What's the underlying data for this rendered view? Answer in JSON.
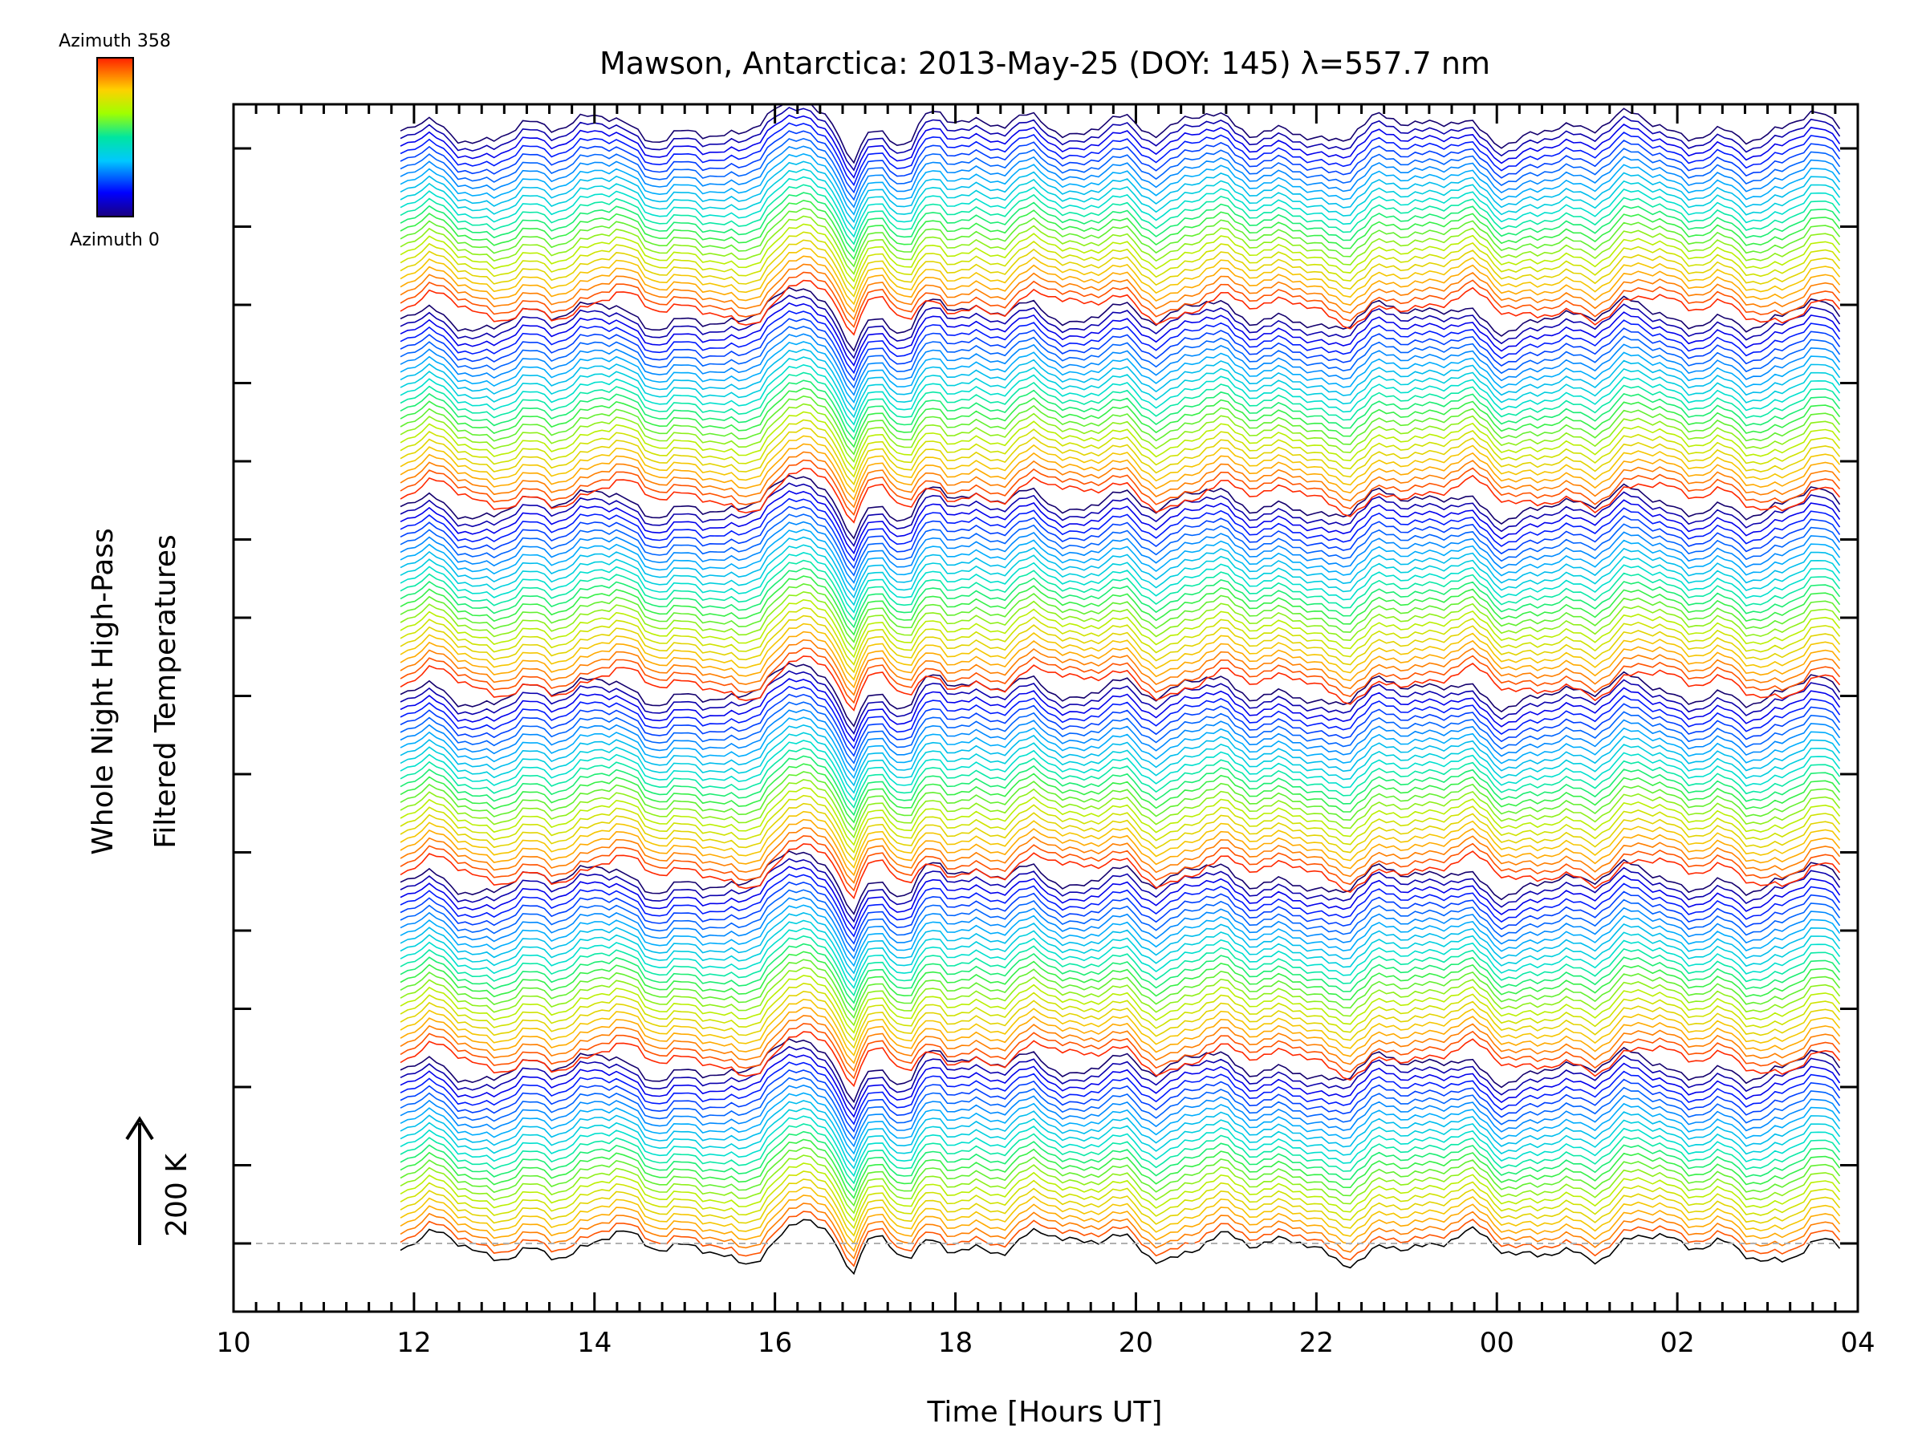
{
  "chart_data": {
    "type": "line",
    "title": "Mawson, Antarctica: 2013-May-25 (DOY: 145) λ=557.7 nm",
    "xlabel": "Time [Hours UT]",
    "ylabel": [
      "Whole Night High-Pass",
      "Filtered Temperatures"
    ],
    "x_ticks": [
      "10",
      "12",
      "14",
      "16",
      "18",
      "20",
      "22",
      "00",
      "02",
      "04"
    ],
    "x_range_hours": [
      10,
      28
    ],
    "data_start_hour": 11.85,
    "data_end_hour": 27.8,
    "scale_bar": {
      "label": "200 K",
      "value_K": 200
    },
    "colorbar": {
      "label_top": "Azimuth 358",
      "label_bottom": "Azimuth 0",
      "min": 0,
      "max": 358
    },
    "baseline_dashed": true,
    "series_count": 144,
    "description_of_series": "Stacked offset traces, one per azimuth sector, colored by azimuth (rainbow colormap, 0 = dark blue, 358 = red)"
  }
}
